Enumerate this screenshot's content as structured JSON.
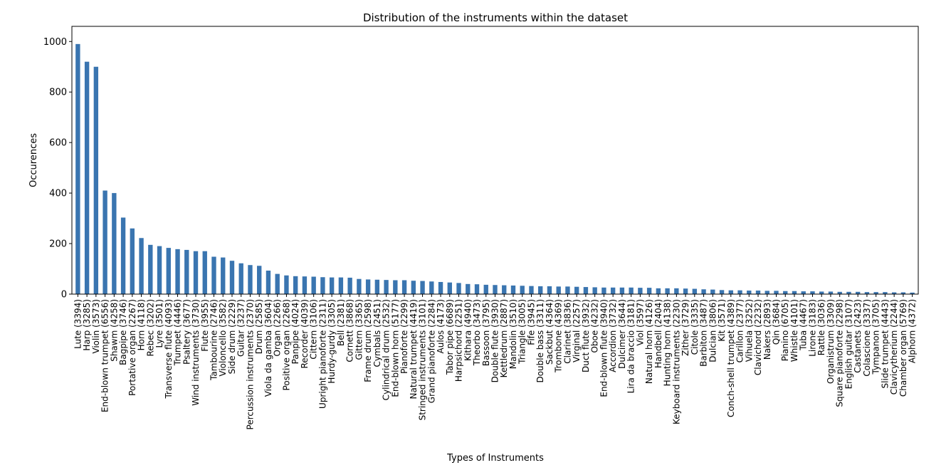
{
  "chart_data": {
    "type": "bar",
    "title": "Distribution of the instruments within the dataset",
    "xlabel": "Types of Instruments",
    "ylabel": "Occurences",
    "ylim": [
      0,
      1060
    ],
    "yticks": [
      0,
      200,
      400,
      600,
      800,
      1000
    ],
    "grid": false,
    "color": "#3a75b0",
    "categories": [
      "Lute (3394)",
      "Harp (3285)",
      "Violin (3573)",
      "End-blown trumpet (6556)",
      "Shawm (4258)",
      "Bagpipe (3746)",
      "Portative organ (2267)",
      "Horn (4118)",
      "Rebec (3202)",
      "Lyre (3501)",
      "Transverse flute (4093)",
      "Trumpet (4446)",
      "Psaltery (3677)",
      "Wind instruments (3730)",
      "Flute (3955)",
      "Tambourine (2746)",
      "Violoncello (3582)",
      "Side drum (2229)",
      "Guitar (3237)",
      "Percussion instruments (2370)",
      "Drum (2585)",
      "Viola da gamba (3604)",
      "Organ (2266)",
      "Positive organ (2268)",
      "Panpipe (4024)",
      "Recorder (4039)",
      "Cittern (3106)",
      "Upright pianoforte (2311)",
      "Hurdy-gurdy (3305)",
      "Bell (2381)",
      "Cornett (3868)",
      "Gittern (3365)",
      "Frame drum (2598)",
      "Cymbals (2451)",
      "Cylindrical drum (2532)",
      "End-blown horn (5177)",
      "Pianoforte (2299)",
      "Natural trumpet (4419)",
      "Stringed instruments (3101)",
      "Grand pianoforte (2284)",
      "Aulos (4173)",
      "Tabor pipe (6689)",
      "Harpsichord (2251)",
      "Kithara (4940)",
      "Theorbo (3473)",
      "Bassoon (3795)",
      "Double flute (3930)",
      "Kettledrum (2887)",
      "Mandolin (3510)",
      "Triangle (3005)",
      "Fife (3945)",
      "Double bass (3311)",
      "Sackbut (4364)",
      "Trombone (4369)",
      "Clarinet (3836)",
      "Virginal (2257)",
      "Duct flute (3932)",
      "Oboe (4232)",
      "End-blown flute (3940)",
      "Accordion (3732)",
      "Dulcimer (3644)",
      "Lira da braccio (3181)",
      "Viol (3597)",
      "Natural horn (4126)",
      "Handbell (2404)",
      "Hunting horn (4138)",
      "Keyboard instruments (2230)",
      "Zither (3729)",
      "Citole (3335)",
      "Barbiton (3487)",
      "Dulcian (3806)",
      "Kit (3571)",
      "Conch-shell trumpet (4389)",
      "Carillon (2377)",
      "Vihuela (3252)",
      "Clavichord (2232)",
      "Nakers (2893)",
      "Qin (3684)",
      "Pianino (6705)",
      "Whistle (4101)",
      "Tuba (4467)",
      "Lirone (3183)",
      "Rattle (3036)",
      "Organistrum (3309)",
      "Square pianoforte (2298)",
      "English guitar (3107)",
      "Castanets (2423)",
      "Colascione (3337)",
      "Tympanon (3705)",
      "Slide trumpet (4443)",
      "Clavicytherium (2244)",
      "Chamber organ (5769)",
      "Alphorn (4372)"
    ],
    "values": [
      990,
      920,
      900,
      410,
      400,
      303,
      260,
      222,
      195,
      190,
      183,
      178,
      175,
      170,
      170,
      148,
      145,
      132,
      122,
      115,
      112,
      93,
      80,
      74,
      71,
      70,
      69,
      67,
      66,
      66,
      65,
      60,
      58,
      57,
      56,
      55,
      55,
      53,
      52,
      50,
      48,
      46,
      44,
      40,
      39,
      37,
      36,
      35,
      34,
      33,
      32,
      31,
      31,
      30,
      30,
      29,
      28,
      27,
      26,
      26,
      26,
      26,
      25,
      25,
      23,
      23,
      23,
      22,
      21,
      19,
      18,
      16,
      15,
      15,
      14,
      14,
      13,
      13,
      12,
      12,
      11,
      11,
      10,
      10,
      9,
      9,
      9,
      8,
      8,
      8,
      7,
      7,
      6
    ]
  }
}
